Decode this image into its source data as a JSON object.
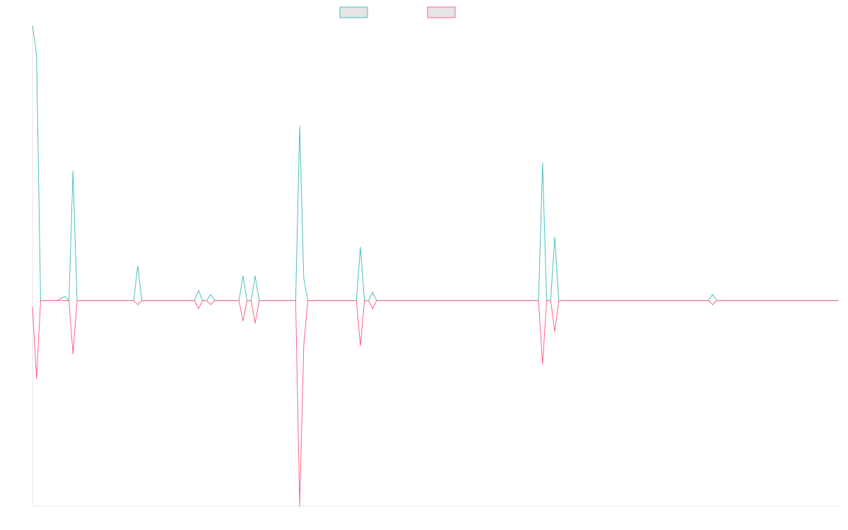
{
  "chart_data": {
    "type": "line",
    "title": "",
    "xlabel": "",
    "ylabel": "",
    "grid": false,
    "legend": "top-center",
    "x_count": 200,
    "ylim": [
      -100,
      134
    ],
    "series": [
      {
        "name": "",
        "color": "#4bc0c0",
        "fill": "#e5e5e5",
        "values": [
          134,
          120,
          0,
          0,
          0,
          0,
          0,
          1,
          2,
          0,
          63,
          0,
          0,
          0,
          0,
          0,
          0,
          0,
          0,
          0,
          0,
          0,
          0,
          0,
          0,
          0,
          17,
          0,
          0,
          0,
          0,
          0,
          0,
          0,
          0,
          0,
          0,
          0,
          0,
          0,
          0,
          5,
          0,
          0,
          3,
          0,
          0,
          0,
          0,
          0,
          0,
          0,
          12,
          0,
          0,
          12,
          0,
          0,
          0,
          0,
          0,
          0,
          0,
          0,
          0,
          0,
          85,
          11,
          0,
          0,
          0,
          0,
          0,
          0,
          0,
          0,
          0,
          0,
          0,
          0,
          0,
          26,
          0,
          0,
          4,
          0,
          0,
          0,
          0,
          0,
          0,
          0,
          0,
          0,
          0,
          0,
          0,
          0,
          0,
          0,
          0,
          0,
          0,
          0,
          0,
          0,
          0,
          0,
          0,
          0,
          0,
          0,
          0,
          0,
          0,
          0,
          0,
          0,
          0,
          0,
          0,
          0,
          0,
          0,
          0,
          0,
          67,
          0,
          0,
          31,
          0,
          0,
          0,
          0,
          0,
          0,
          0,
          0,
          0,
          0,
          0,
          0,
          0,
          0,
          0,
          0,
          0,
          0,
          0,
          0,
          0,
          0,
          0,
          0,
          0,
          0,
          0,
          0,
          0,
          0,
          0,
          0,
          0,
          0,
          0,
          0,
          0,
          0,
          3,
          0,
          0,
          0,
          0,
          0,
          0,
          0,
          0,
          0,
          0,
          0,
          0,
          0,
          0,
          0,
          0,
          0,
          0,
          0,
          0,
          0,
          0,
          0,
          0,
          0,
          0,
          0,
          0,
          0,
          0,
          0
        ]
      },
      {
        "name": "",
        "color": "#ff6384",
        "fill": "#e5e5e5",
        "values": [
          -3,
          -38,
          0,
          0,
          0,
          0,
          0,
          0,
          0,
          0,
          -26,
          0,
          0,
          0,
          0,
          0,
          0,
          0,
          0,
          0,
          0,
          0,
          0,
          0,
          0,
          0,
          -2,
          0,
          0,
          0,
          0,
          0,
          0,
          0,
          0,
          0,
          0,
          0,
          0,
          0,
          0,
          -4,
          0,
          0,
          -2,
          0,
          0,
          0,
          0,
          0,
          0,
          0,
          -10,
          0,
          0,
          -11,
          0,
          0,
          0,
          0,
          0,
          0,
          0,
          0,
          0,
          0,
          -100,
          -22,
          0,
          0,
          0,
          0,
          0,
          0,
          0,
          0,
          0,
          0,
          0,
          0,
          0,
          -22,
          0,
          0,
          -4,
          0,
          0,
          0,
          0,
          0,
          0,
          0,
          0,
          0,
          0,
          0,
          0,
          0,
          0,
          0,
          0,
          0,
          0,
          0,
          0,
          0,
          0,
          0,
          0,
          0,
          0,
          0,
          0,
          0,
          0,
          0,
          0,
          0,
          0,
          0,
          0,
          0,
          0,
          0,
          0,
          0,
          -31,
          0,
          0,
          -15,
          0,
          0,
          0,
          0,
          0,
          0,
          0,
          0,
          0,
          0,
          0,
          0,
          0,
          0,
          0,
          0,
          0,
          0,
          0,
          0,
          0,
          0,
          0,
          0,
          0,
          0,
          0,
          0,
          0,
          0,
          0,
          0,
          0,
          0,
          0,
          0,
          0,
          0,
          -2,
          0,
          0,
          0,
          0,
          0,
          0,
          0,
          0,
          0,
          0,
          0,
          0,
          0,
          0,
          0,
          0,
          0,
          0,
          0,
          0,
          0,
          0,
          0,
          0,
          0,
          0,
          0,
          0,
          0,
          0,
          0
        ]
      }
    ]
  }
}
